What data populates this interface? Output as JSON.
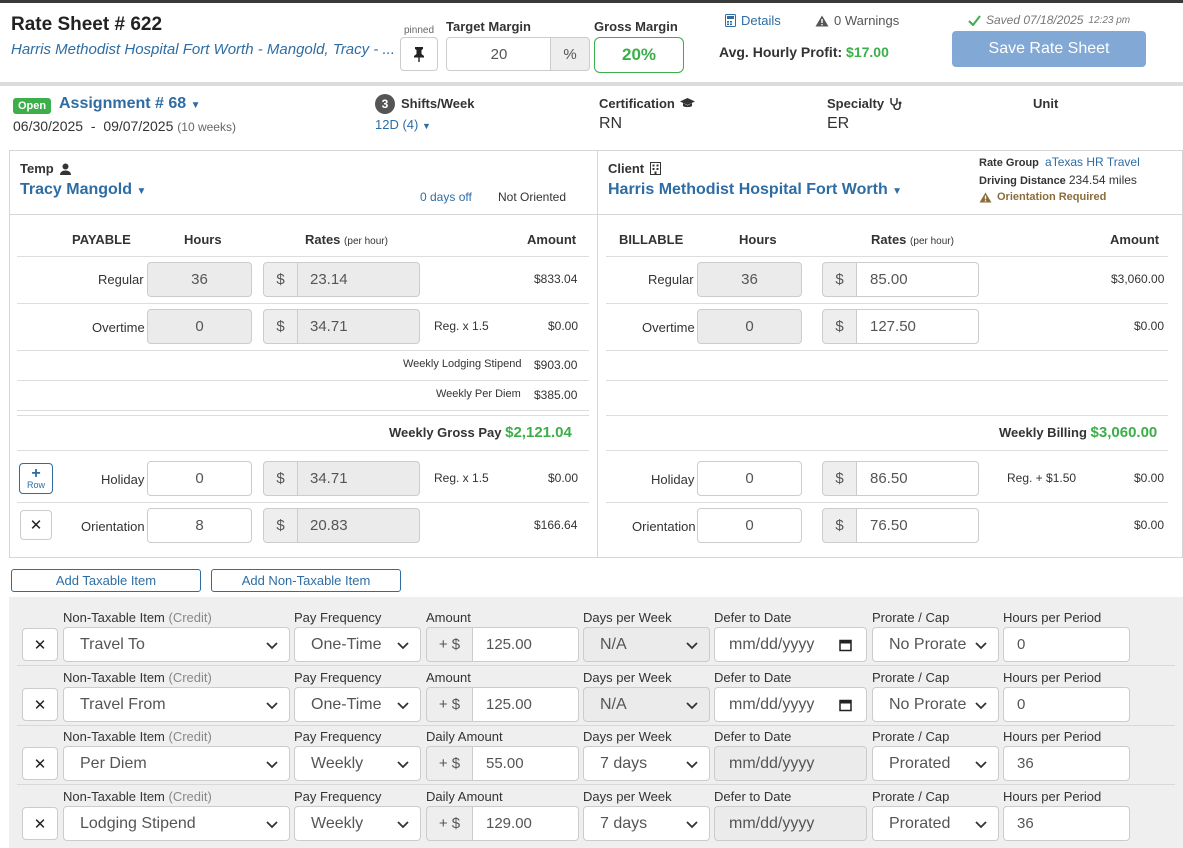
{
  "header": {
    "title": "Rate Sheet # 622",
    "subtitle": "Harris Methodist Hospital Fort Worth - Mangold, Tracy - ...",
    "pinned_label": "pinned",
    "target_margin_label": "Target Margin",
    "target_margin_value": "20",
    "target_margin_unit": "%",
    "gross_margin_label": "Gross Margin",
    "gross_margin_value": "20%",
    "details_link": "Details",
    "warnings": "0 Warnings",
    "avg_hourly_label": "Avg. Hourly Profit:",
    "avg_hourly_value": "$17.00",
    "saved_text": "Saved 07/18/2025",
    "saved_time": "12:23 pm",
    "save_button": "Save Rate Sheet",
    "colors": {
      "accent": "#2e6da4",
      "green": "#3cae4a",
      "save_button": "#82a8d6"
    }
  },
  "assignment": {
    "status_badge": "Open",
    "title": "Assignment # 68",
    "start": "06/30/2025",
    "dash": "-",
    "end": "09/07/2025",
    "weeks": "(10 weeks)",
    "shifts_count": "3",
    "shifts_label": "Shifts/Week",
    "shift_type": "12D (4)",
    "certification_label": "Certification",
    "certification_value": "RN",
    "specialty_label": "Specialty",
    "specialty_value": "ER",
    "unit_label": "Unit"
  },
  "temp": {
    "label": "Temp",
    "name": "Tracy Mangold",
    "days_off": "0 days off",
    "oriented": "Not Oriented",
    "col_payable": "PAYABLE",
    "col_hours": "Hours",
    "col_rates": "Rates",
    "col_rates_sub": "(per hour)",
    "col_amount": "Amount",
    "rows": [
      {
        "label": "Regular",
        "hours": "36",
        "currency": "$",
        "rate": "23.14",
        "note": "",
        "amount": "$833.04"
      },
      {
        "label": "Overtime",
        "hours": "0",
        "currency": "$",
        "rate": "34.71",
        "note": "Reg. x 1.5",
        "amount": "$0.00"
      }
    ],
    "lodging_label": "Weekly Lodging Stipend",
    "lodging_value": "$903.00",
    "perdiem_label": "Weekly Per Diem",
    "perdiem_value": "$385.00",
    "gross_label": "Weekly Gross Pay",
    "gross_value": "$2,121.04",
    "add_row_label": "Row",
    "extra_rows": [
      {
        "label": "Holiday",
        "hours": "0",
        "currency": "$",
        "rate": "34.71",
        "note": "Reg. x 1.5",
        "amount": "$0.00"
      },
      {
        "label": "Orientation",
        "hours": "8",
        "currency": "$",
        "rate": "20.83",
        "note": "",
        "amount": "$166.64"
      }
    ]
  },
  "client": {
    "label": "Client",
    "name": "Harris Methodist Hospital Fort Worth",
    "rate_group_label": "Rate Group",
    "rate_group_value": "aTexas HR Travel",
    "driving_label": "Driving Distance",
    "driving_value": "234.54 miles",
    "orientation_required": "Orientation Required",
    "col_billable": "BILLABLE",
    "col_hours": "Hours",
    "col_rates": "Rates",
    "col_rates_sub": "(per hour)",
    "col_amount": "Amount",
    "rows": [
      {
        "label": "Regular",
        "hours": "36",
        "currency": "$",
        "rate": "85.00",
        "note": "",
        "amount": "$3,060.00"
      },
      {
        "label": "Overtime",
        "hours": "0",
        "currency": "$",
        "rate": "127.50",
        "note": "",
        "amount": "$0.00"
      }
    ],
    "billing_label": "Weekly Billing",
    "billing_value": "$3,060.00",
    "extra_rows": [
      {
        "label": "Holiday",
        "hours": "0",
        "currency": "$",
        "rate": "86.50",
        "note": "Reg. + $1.50",
        "amount": "$0.00"
      },
      {
        "label": "Orientation",
        "hours": "0",
        "currency": "$",
        "rate": "76.50",
        "note": "",
        "amount": "$0.00"
      }
    ]
  },
  "actions": {
    "add_taxable": "Add Taxable Item",
    "add_non_taxable": "Add Non-Taxable Item"
  },
  "non_taxable": {
    "labels": {
      "item": "Non-Taxable Item",
      "item_sub": "(Credit)",
      "frequency": "Pay Frequency",
      "days": "Days per Week",
      "defer": "Defer to Date",
      "prorate": "Prorate / Cap",
      "hours": "Hours per Period",
      "prefix": "+ $"
    },
    "rows": [
      {
        "item": "Travel To",
        "frequency": "One-Time",
        "amount_label": "Amount",
        "amount": "125.00",
        "days": "N/A",
        "defer": "mm/dd/yyyy",
        "prorate": "No Prorate",
        "hours": "0"
      },
      {
        "item": "Travel From",
        "frequency": "One-Time",
        "amount_label": "Amount",
        "amount": "125.00",
        "days": "N/A",
        "defer": "mm/dd/yyyy",
        "prorate": "No Prorate",
        "hours": "0"
      },
      {
        "item": "Per Diem",
        "frequency": "Weekly",
        "amount_label": "Daily Amount",
        "amount": "55.00",
        "days": "7 days",
        "defer": "mm/dd/yyyy",
        "prorate": "Prorated",
        "hours": "36"
      },
      {
        "item": "Lodging Stipend",
        "frequency": "Weekly",
        "amount_label": "Daily Amount",
        "amount": "129.00",
        "days": "7 days",
        "defer": "mm/dd/yyyy",
        "prorate": "Prorated",
        "hours": "36"
      }
    ]
  }
}
